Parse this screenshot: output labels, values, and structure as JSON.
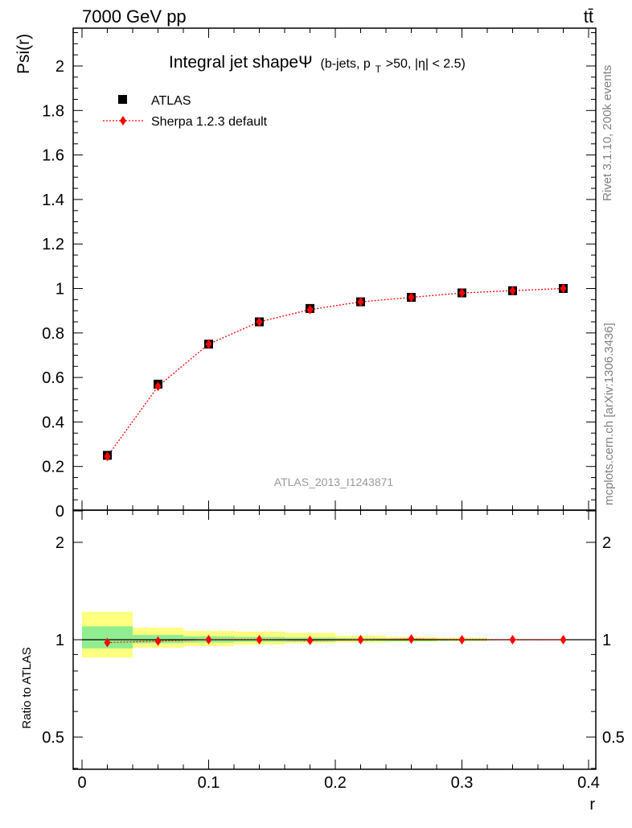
{
  "header": {
    "left": "7000 GeV pp",
    "right": "tt̄"
  },
  "side_labels": {
    "rivet": "Rivet 3.1.10,  200k events",
    "mcplots": "mcplots.cern.ch [arXiv:1306.3436]"
  },
  "watermark": "ATLAS_2013_I1243871",
  "chart_data": [
    {
      "type": "scatter",
      "panel": "main",
      "title": "Integral jet shapeΨ",
      "subtitle_parts": [
        "(b-jets, p",
        "T",
        ">50, |η| < 2.5)"
      ],
      "ylabel": "Psi(r)",
      "xlim": [
        0,
        0.4
      ],
      "ylim": [
        0,
        2.2
      ],
      "yticks": [
        0,
        0.2,
        0.4,
        0.6,
        0.8,
        1,
        1.2,
        1.4,
        1.6,
        1.8,
        2
      ],
      "ytick_labels": [
        "0",
        "0.2",
        "0.4",
        "0.6",
        "0.8",
        "1",
        "1.2",
        "1.4",
        "1.6",
        "1.8",
        "2"
      ],
      "legend_position": "top-left",
      "series": [
        {
          "name": "ATLAS",
          "marker": "square",
          "color": "#000000",
          "x": [
            0.02,
            0.06,
            0.1,
            0.14,
            0.18,
            0.22,
            0.26,
            0.3,
            0.34,
            0.38
          ],
          "y": [
            0.25,
            0.57,
            0.75,
            0.85,
            0.91,
            0.94,
            0.96,
            0.98,
            0.99,
            1.0
          ]
        },
        {
          "name": "Sherpa 1.2.3 default",
          "marker": "diamond",
          "line": "dotted",
          "color": "#ff0000",
          "x": [
            0.02,
            0.06,
            0.1,
            0.14,
            0.18,
            0.22,
            0.26,
            0.3,
            0.34,
            0.38
          ],
          "y": [
            0.245,
            0.56,
            0.75,
            0.85,
            0.905,
            0.94,
            0.96,
            0.98,
            0.99,
            1.0
          ]
        }
      ]
    },
    {
      "type": "scatter",
      "panel": "ratio",
      "ylabel": "Ratio to ATLAS",
      "xlabel": "r",
      "xlim": [
        0,
        0.4
      ],
      "ylim": [
        0.3,
        2.3
      ],
      "xticks": [
        0,
        0.1,
        0.2,
        0.3,
        0.4
      ],
      "xtick_labels": [
        "0",
        "0.1",
        "0.2",
        "0.3",
        "0.4"
      ],
      "yticks": [
        0.5,
        1,
        2
      ],
      "ytick_labels": [
        "0.5",
        "1",
        "2"
      ],
      "bands": {
        "colors": {
          "inner": "#90ee90",
          "outer": "#ffff80"
        },
        "bins": [
          {
            "x0": 0.0,
            "x1": 0.04,
            "inner": [
              0.94,
              1.1
            ],
            "outer": [
              0.88,
              1.22
            ]
          },
          {
            "x0": 0.04,
            "x1": 0.08,
            "inner": [
              0.975,
              1.035
            ],
            "outer": [
              0.945,
              1.09
            ]
          },
          {
            "x0": 0.08,
            "x1": 0.12,
            "inner": [
              0.98,
              1.025
            ],
            "outer": [
              0.955,
              1.065
            ]
          },
          {
            "x0": 0.12,
            "x1": 0.16,
            "inner": [
              0.985,
              1.02
            ],
            "outer": [
              0.965,
              1.06
            ]
          },
          {
            "x0": 0.16,
            "x1": 0.2,
            "inner": [
              0.985,
              1.015
            ],
            "outer": [
              0.975,
              1.05
            ]
          },
          {
            "x0": 0.2,
            "x1": 0.24,
            "inner": [
              0.99,
              1.012
            ],
            "outer": [
              0.98,
              1.03
            ]
          },
          {
            "x0": 0.24,
            "x1": 0.28,
            "inner": [
              0.99,
              1.01
            ],
            "outer": [
              0.985,
              1.02
            ]
          },
          {
            "x0": 0.28,
            "x1": 0.32,
            "inner": [
              0.992,
              1.008
            ],
            "outer": [
              0.99,
              1.015
            ]
          }
        ]
      },
      "series": [
        {
          "name": "Sherpa 1.2.3 default",
          "marker": "diamond",
          "line": "dotted",
          "color": "#ff0000",
          "x": [
            0.02,
            0.06,
            0.1,
            0.14,
            0.18,
            0.22,
            0.26,
            0.3,
            0.34,
            0.38
          ],
          "y": [
            0.98,
            0.99,
            1.0,
            1.0,
            0.995,
            1.0,
            1.005,
            1.0,
            1.0,
            1.0
          ]
        }
      ]
    }
  ]
}
